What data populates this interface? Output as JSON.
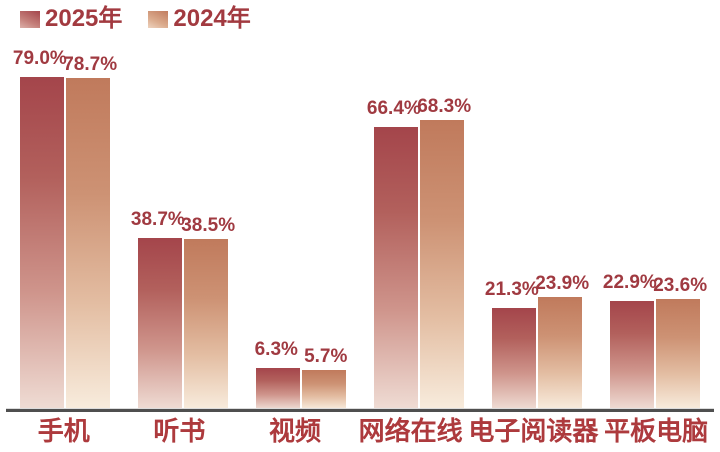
{
  "chart_data": {
    "type": "bar",
    "categories": [
      "手机",
      "听书",
      "视频",
      "网络在线",
      "电子阅读器",
      "平板电脑"
    ],
    "series": [
      {
        "name": "2025年",
        "values": [
          79.0,
          38.7,
          6.3,
          66.4,
          21.3,
          22.9
        ],
        "color_top": "#a4454b",
        "color_bottom": "#efdcd4"
      },
      {
        "name": "2024年",
        "values": [
          78.7,
          38.5,
          5.7,
          68.3,
          23.9,
          23.6
        ],
        "color_top": "#c07a5c",
        "color_bottom": "#f8ecdd"
      }
    ],
    "value_suffix": "%",
    "value_decimals": 1,
    "title": "",
    "xlabel": "",
    "ylabel": "",
    "ylim": [
      0,
      80
    ],
    "grid": false,
    "legend_position": "top-left",
    "data_labels_shown": true
  },
  "colors": {
    "label_text": "#a03a41",
    "category_text": "#ad3a3d",
    "axis_line": "#4f4f4f",
    "background": "#ffffff"
  }
}
